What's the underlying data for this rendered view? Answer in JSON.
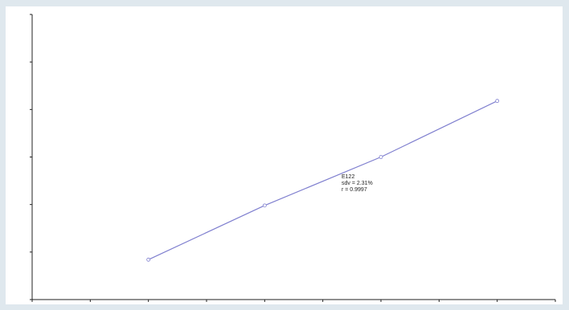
{
  "chart_data": {
    "type": "line",
    "title": "",
    "xlabel": "",
    "ylabel": "",
    "xlim": [
      0,
      0.9
    ],
    "ylim": [
      0,
      3000
    ],
    "x_ticks": [
      0,
      0.1,
      0.2,
      0.3,
      0.4,
      0.5,
      0.6,
      0.7,
      0.8,
      0.9
    ],
    "x_tick_labels": [
      "",
      "",
      "",
      "",
      "",
      "",
      "",
      "",
      "",
      ""
    ],
    "y_ticks": [
      0,
      500,
      1000,
      1500,
      2000,
      2500,
      3000
    ],
    "y_tick_labels": [
      "",
      "",
      "",
      "",
      "",
      "",
      ""
    ],
    "grid": false,
    "series": [
      {
        "x": [
          0.2,
          0.4,
          0.6,
          0.8
        ],
        "y": [
          420,
          990,
          1500,
          2090
        ],
        "color": "#7f7fcf",
        "marker": "circle"
      }
    ],
    "annotation": {
      "line1": "E122",
      "line2": "sdv = 2.31%",
      "line3": "r = 0.9997"
    }
  }
}
